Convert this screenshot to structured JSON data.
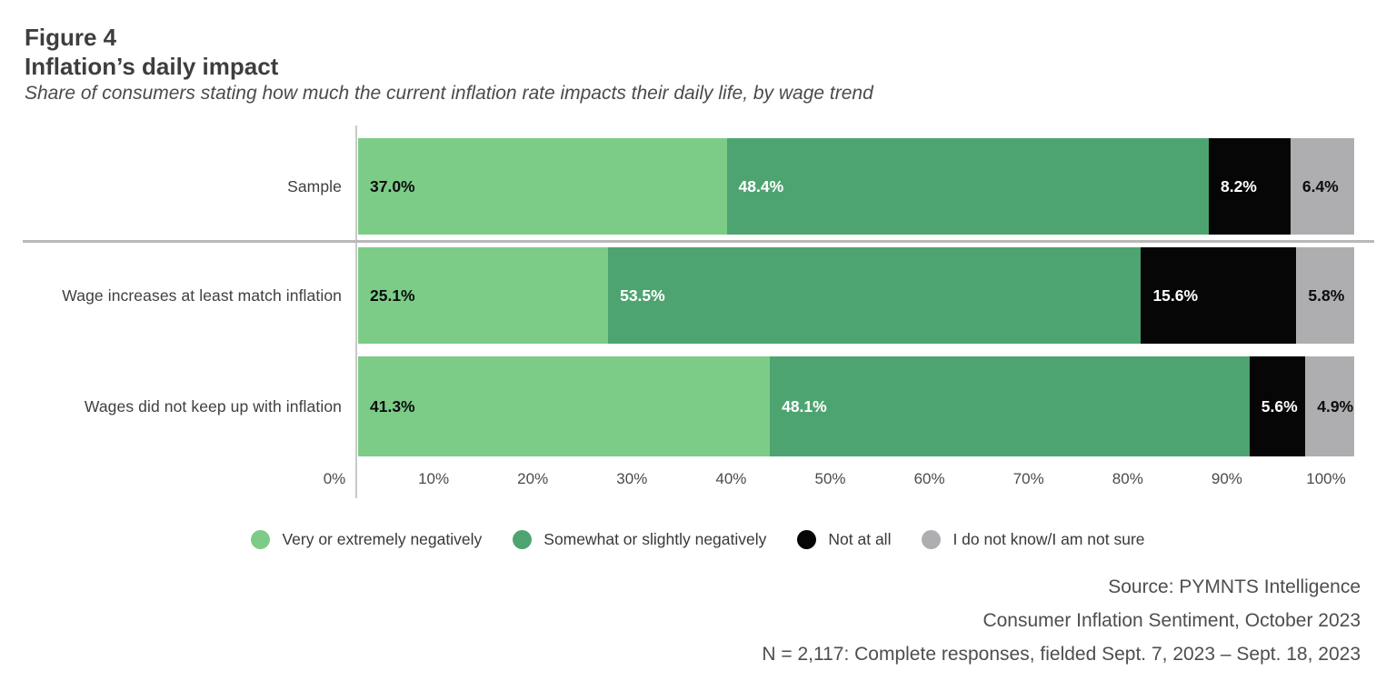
{
  "header": {
    "figure_label": "Figure 4",
    "title": "Inflation’s daily impact",
    "subtitle": "Share of consumers stating how much the current inflation rate impacts their daily life, by wage trend"
  },
  "chart_data": {
    "type": "bar",
    "orientation": "horizontal",
    "stacked": true,
    "unit": "%",
    "title": "Inflation’s daily impact",
    "categories": [
      "Sample",
      "Wage increases at least match inflation",
      "Wages did not keep up with inflation"
    ],
    "series": [
      {
        "name": "Very or extremely negatively",
        "color": "#7CCC88",
        "text_color": "#0d0d0d",
        "values": [
          37.0,
          25.1,
          41.3
        ]
      },
      {
        "name": "Somewhat or slightly negatively",
        "color": "#4EA471",
        "text_color": "#ffffff",
        "values": [
          48.4,
          53.5,
          48.1
        ]
      },
      {
        "name": "Not at all",
        "color": "#060606",
        "text_color": "#ffffff",
        "values": [
          8.2,
          15.6,
          5.6
        ]
      },
      {
        "name": "I do not know/I am not sure",
        "color": "#AEADB0",
        "text_color": "#0d0d0d",
        "values": [
          6.4,
          5.8,
          4.9
        ]
      }
    ],
    "x_axis": {
      "min": 0,
      "max": 100,
      "ticks": [
        "0%",
        "10%",
        "20%",
        "30%",
        "40%",
        "50%",
        "60%",
        "70%",
        "80%",
        "90%",
        "100%"
      ],
      "grid": false
    },
    "legend_position": "bottom",
    "value_label_format": "one-decimal-percent"
  },
  "footer": {
    "lines": [
      "Source: PYMNTS Intelligence",
      "Consumer Inflation Sentiment, October 2023",
      "N = 2,117: Complete responses, fielded Sept. 7, 2023 – Sept. 18, 2023"
    ]
  }
}
